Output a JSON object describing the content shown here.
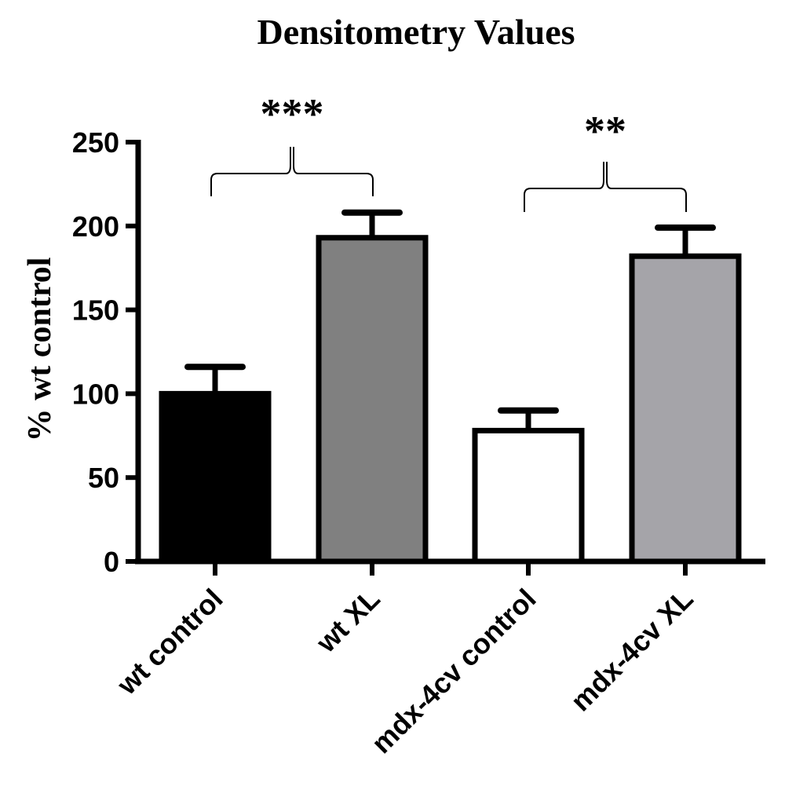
{
  "chart_data": {
    "type": "bar",
    "title": "Densitometry Values",
    "ylabel": "% wt control",
    "xlabel": "",
    "ylim": [
      0,
      250
    ],
    "yticks": [
      "0",
      "50",
      "100",
      "150",
      "200",
      "250"
    ],
    "categories": [
      "wt control",
      "wt XL",
      "mdx-4cv control",
      "mdx-4cv XL"
    ],
    "values": [
      100,
      193,
      78,
      182
    ],
    "errors": [
      16,
      15,
      12,
      17
    ],
    "colors": [
      "#000000",
      "#808080",
      "#ffffff",
      "#a5a4a9"
    ],
    "legend": "none",
    "grid": false,
    "significance": [
      {
        "from": 0,
        "to": 1,
        "label": "***"
      },
      {
        "from": 2,
        "to": 3,
        "label": "**"
      }
    ]
  }
}
